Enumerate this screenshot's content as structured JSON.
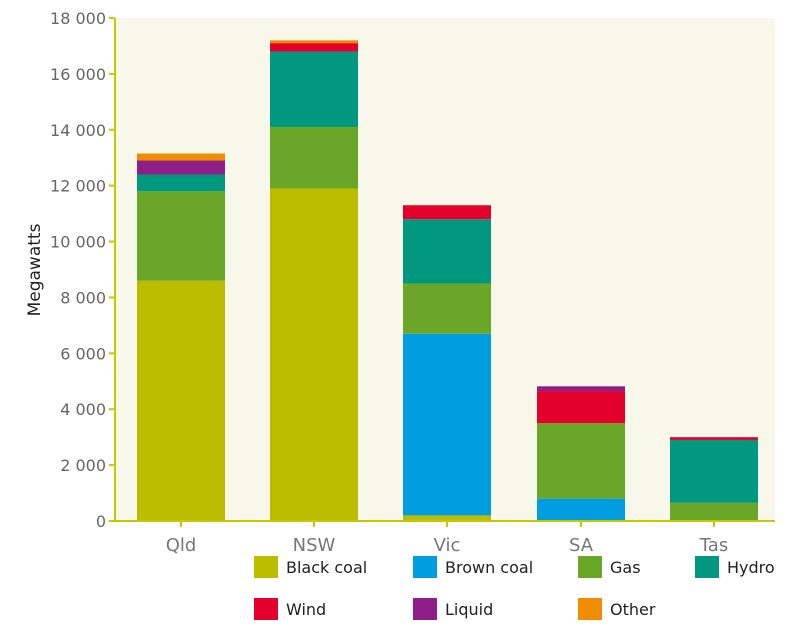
{
  "chart_data": {
    "type": "bar",
    "stacked": true,
    "ylabel": "Megawatts",
    "xlabel": "",
    "ylim": [
      0,
      18000
    ],
    "yticks": [
      0,
      2000,
      4000,
      6000,
      8000,
      10000,
      12000,
      14000,
      16000,
      18000
    ],
    "ytick_labels": [
      "0",
      "2 000",
      "4 000",
      "6 000",
      "8 000",
      "10 000",
      "12 000",
      "14 000",
      "16 000",
      "18 000"
    ],
    "categories": [
      "Qld",
      "NSW",
      "Vic",
      "SA",
      "Tas"
    ],
    "series": [
      {
        "name": "Black coal",
        "color": "#bdbd00",
        "values": [
          8600,
          11900,
          200,
          0,
          0
        ]
      },
      {
        "name": "Brown coal",
        "color": "#009ee0",
        "values": [
          0,
          0,
          6500,
          800,
          0
        ]
      },
      {
        "name": "Gas",
        "color": "#6aa728",
        "values": [
          3200,
          2200,
          1800,
          2700,
          650
        ]
      },
      {
        "name": "Hydro",
        "color": "#009980",
        "values": [
          600,
          2700,
          2300,
          0,
          2250
        ]
      },
      {
        "name": "Wind",
        "color": "#e3002b",
        "values": [
          0,
          300,
          500,
          1150,
          100
        ]
      },
      {
        "name": "Liquid",
        "color": "#8e1f88",
        "values": [
          500,
          0,
          0,
          170,
          0
        ]
      },
      {
        "name": "Other",
        "color": "#f08c00",
        "values": [
          250,
          100,
          0,
          0,
          0
        ]
      }
    ],
    "plot_background": "#f7f7ea",
    "axis_color": "#c8c800",
    "grid": false,
    "legend_position": "bottom"
  }
}
